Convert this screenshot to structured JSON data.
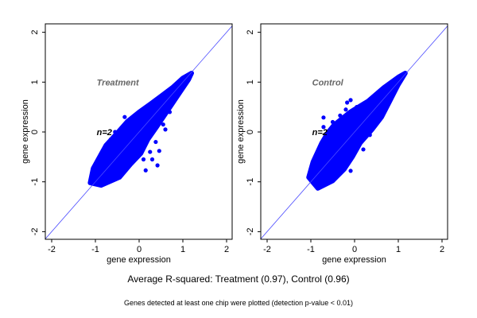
{
  "caption": "Average R-squared: Treatment (0.97), Control (0.96)",
  "footnote": "Genes detected at least one chip were plotted (detection p-value < 0.01)",
  "colors": {
    "points": "#0000ff",
    "line": "#4a4aff",
    "label": "#666666"
  },
  "chart_data": [
    {
      "type": "scatter",
      "title": "Treatment",
      "annotation": "n=2",
      "xlabel": "gene expression",
      "ylabel": "gene expression",
      "xlim": [
        -2.2,
        2.2
      ],
      "ylim": [
        -2.2,
        2.2
      ],
      "xticks": [
        "-2",
        "-1",
        "0",
        "1",
        "2"
      ],
      "yticks": [
        "-2",
        "-1",
        "0",
        "1",
        "2"
      ],
      "reference_line": "y = x",
      "dense_region": [
        [
          -1.12,
          -1.02
        ],
        [
          -1.05,
          -0.73
        ],
        [
          -0.76,
          -0.27
        ],
        [
          -0.5,
          -0.02
        ],
        [
          -0.27,
          0.21
        ],
        [
          0.0,
          0.4
        ],
        [
          0.27,
          0.57
        ],
        [
          0.5,
          0.72
        ],
        [
          0.76,
          0.89
        ],
        [
          1.0,
          1.08
        ],
        [
          1.2,
          1.18
        ],
        [
          1.13,
          1.05
        ],
        [
          0.76,
          0.57
        ],
        [
          0.4,
          0.1
        ],
        [
          0.2,
          -0.15
        ],
        [
          0.04,
          -0.43
        ],
        [
          -0.2,
          -0.65
        ],
        [
          -0.45,
          -0.91
        ],
        [
          -0.87,
          -1.07
        ]
      ],
      "points": [
        [
          -0.33,
          0.3
        ],
        [
          0.46,
          -0.38
        ],
        [
          0.42,
          -0.67
        ],
        [
          0.15,
          -0.77
        ],
        [
          0.7,
          0.4
        ],
        [
          0.55,
          0.15
        ],
        [
          0.6,
          0.05
        ],
        [
          0.38,
          -0.2
        ],
        [
          -0.55,
          0.0
        ],
        [
          -0.65,
          -0.15
        ],
        [
          0.25,
          -0.4
        ],
        [
          0.3,
          -0.55
        ],
        [
          0.1,
          -0.55
        ]
      ]
    },
    {
      "type": "scatter",
      "title": "Control",
      "annotation": "n=2",
      "xlabel": "gene expression",
      "ylabel": "gene expression",
      "xlim": [
        -2.2,
        2.2
      ],
      "ylim": [
        -2.2,
        2.2
      ],
      "xticks": [
        "-2",
        "-1",
        "0",
        "1",
        "2"
      ],
      "yticks": [
        "-2",
        "-1",
        "0",
        "1",
        "2"
      ],
      "reference_line": "y = x",
      "dense_region": [
        [
          -1.05,
          -0.91
        ],
        [
          -0.95,
          -0.6
        ],
        [
          -0.75,
          -0.22
        ],
        [
          -0.6,
          0.0
        ],
        [
          -0.47,
          0.14
        ],
        [
          -0.1,
          0.4
        ],
        [
          0.31,
          0.62
        ],
        [
          0.67,
          0.89
        ],
        [
          1.0,
          1.1
        ],
        [
          1.16,
          1.18
        ],
        [
          1.0,
          0.95
        ],
        [
          0.62,
          0.3
        ],
        [
          0.4,
          0.05
        ],
        [
          0.13,
          -0.22
        ],
        [
          -0.05,
          -0.5
        ],
        [
          -0.24,
          -0.75
        ],
        [
          -0.5,
          -0.98
        ],
        [
          -0.84,
          -1.13
        ]
      ],
      "points": [
        [
          -0.71,
          0.29
        ],
        [
          -0.17,
          0.59
        ],
        [
          -0.09,
          0.64
        ],
        [
          -0.33,
          0.33
        ],
        [
          0.35,
          -0.06
        ],
        [
          -0.09,
          -0.78
        ],
        [
          -0.71,
          0.1
        ],
        [
          -0.2,
          0.45
        ],
        [
          0.05,
          0.5
        ],
        [
          -0.5,
          0.2
        ],
        [
          0.55,
          0.3
        ],
        [
          0.2,
          -0.35
        ],
        [
          -0.85,
          -0.45
        ]
      ]
    }
  ]
}
